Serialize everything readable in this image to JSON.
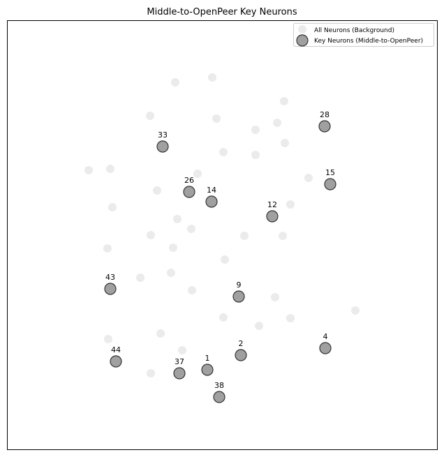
{
  "chart_data": {
    "type": "scatter",
    "title": "Middle-to-OpenPeer Key Neurons",
    "xlabel": "",
    "ylabel": "",
    "xlim": [
      0,
      636
    ],
    "ylim": [
      655,
      0
    ],
    "grid": false,
    "axis_ticks": false,
    "legend_position": "top-right",
    "series": [
      {
        "name": "All Neurons (Background)",
        "color": "#ebebeb",
        "points": [
          {
            "x": 251,
            "y": 118
          },
          {
            "x": 304,
            "y": 111
          },
          {
            "x": 407,
            "y": 145
          },
          {
            "x": 215,
            "y": 166
          },
          {
            "x": 310,
            "y": 170
          },
          {
            "x": 397,
            "y": 176
          },
          {
            "x": 366,
            "y": 186
          },
          {
            "x": 408,
            "y": 205
          },
          {
            "x": 320,
            "y": 218
          },
          {
            "x": 366,
            "y": 222
          },
          {
            "x": 127,
            "y": 244
          },
          {
            "x": 158,
            "y": 242
          },
          {
            "x": 283,
            "y": 249
          },
          {
            "x": 442,
            "y": 255
          },
          {
            "x": 225,
            "y": 273
          },
          {
            "x": 161,
            "y": 297
          },
          {
            "x": 416,
            "y": 293
          },
          {
            "x": 254,
            "y": 314
          },
          {
            "x": 274,
            "y": 328
          },
          {
            "x": 216,
            "y": 337
          },
          {
            "x": 350,
            "y": 338
          },
          {
            "x": 405,
            "y": 338
          },
          {
            "x": 154,
            "y": 356
          },
          {
            "x": 248,
            "y": 355
          },
          {
            "x": 322,
            "y": 372
          },
          {
            "x": 245,
            "y": 391
          },
          {
            "x": 201,
            "y": 398
          },
          {
            "x": 275,
            "y": 416
          },
          {
            "x": 394,
            "y": 426
          },
          {
            "x": 509,
            "y": 445
          },
          {
            "x": 320,
            "y": 455
          },
          {
            "x": 416,
            "y": 456
          },
          {
            "x": 371,
            "y": 467
          },
          {
            "x": 230,
            "y": 478
          },
          {
            "x": 155,
            "y": 486
          },
          {
            "x": 261,
            "y": 502
          },
          {
            "x": 216,
            "y": 535
          }
        ]
      },
      {
        "name": "Key Neurons (Middle-to-OpenPeer)",
        "color": "#a0a0a0",
        "points": [
          {
            "id": "28",
            "x": 465,
            "y": 181
          },
          {
            "id": "33",
            "x": 233,
            "y": 210
          },
          {
            "id": "15",
            "x": 473,
            "y": 264
          },
          {
            "id": "26",
            "x": 271,
            "y": 275
          },
          {
            "id": "14",
            "x": 303,
            "y": 289
          },
          {
            "id": "12",
            "x": 390,
            "y": 310
          },
          {
            "id": "43",
            "x": 158,
            "y": 414
          },
          {
            "id": "9",
            "x": 342,
            "y": 425
          },
          {
            "id": "4",
            "x": 466,
            "y": 499
          },
          {
            "id": "2",
            "x": 345,
            "y": 509
          },
          {
            "id": "44",
            "x": 166,
            "y": 518
          },
          {
            "id": "1",
            "x": 297,
            "y": 530
          },
          {
            "id": "37",
            "x": 257,
            "y": 535
          },
          {
            "id": "38",
            "x": 314,
            "y": 569
          }
        ]
      }
    ]
  }
}
